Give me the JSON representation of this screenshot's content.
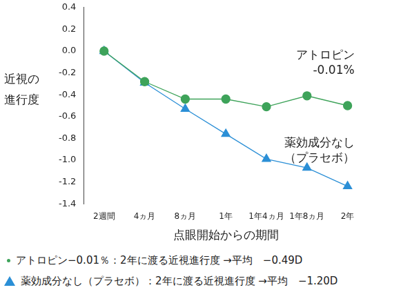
{
  "chart_data": {
    "type": "line",
    "x_label": "点眼開始からの期間",
    "y_label": [
      "近視の",
      "進行度"
    ],
    "categories": [
      "2週間",
      "4ヵ月",
      "8ヵ月",
      "1年",
      "1年4ヵ月",
      "1年8ヵ月",
      "2年"
    ],
    "series": [
      {
        "name": "アトロピン -0.01%",
        "color": "#3ea35a",
        "marker": "circle",
        "values": [
          0.0,
          -0.28,
          -0.44,
          -0.44,
          -0.51,
          -0.41,
          -0.5
        ]
      },
      {
        "name": "薬効成分なし（プラセボ）",
        "color": "#2b8fd6",
        "marker": "triangle",
        "values": [
          0.0,
          -0.29,
          -0.53,
          -0.76,
          -0.99,
          -1.07,
          -1.24
        ]
      }
    ],
    "annotations": [
      {
        "text": [
          "アトロピン",
          "-0.01%"
        ]
      },
      {
        "text": [
          "薬効成分なし",
          "（プラセボ）"
        ]
      }
    ],
    "notes": [
      "アトロピン−0.01％：2年に渡る近視進行度 →平均　−0.49D",
      "薬効成分なし（プラセボ）：2年に渡る近視進行度 →平均　−1.20D"
    ],
    "ylim": [
      -1.4,
      0.4
    ],
    "yticks": [
      -1.4,
      -1.2,
      {
        "value": -1,
        "label": "-1.0"
      },
      -0.8,
      -0.6,
      -0.4,
      -0.2,
      {
        "value": 0,
        "label": "0.0"
      },
      0.2,
      0.4
    ],
    "grid": false,
    "legend": "none"
  }
}
